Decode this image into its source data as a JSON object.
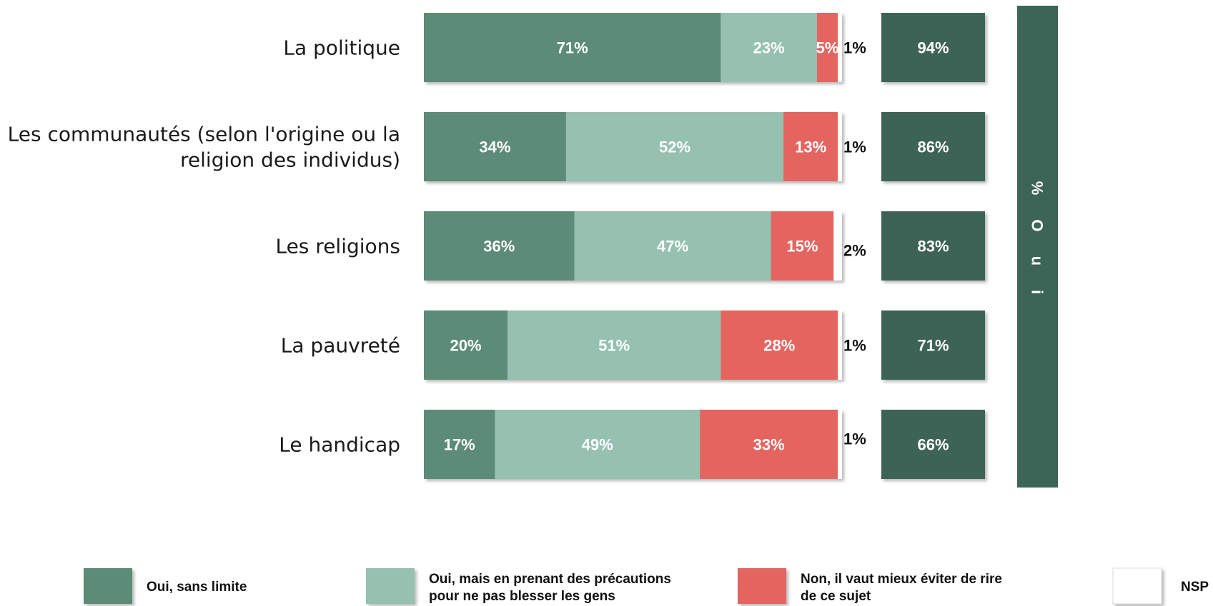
{
  "chart_data": {
    "type": "bar",
    "orientation": "horizontal",
    "stacked": true,
    "categories": [
      [
        "La politique"
      ],
      [
        "Les communautés (selon l'origine ou la",
        "religion des individus)"
      ],
      [
        "Les religions"
      ],
      [
        "La pauvreté"
      ],
      [
        "Le handicap"
      ]
    ],
    "series": [
      {
        "name": "Oui, sans limite",
        "values": [
          71,
          34,
          36,
          20,
          17
        ],
        "color": "#5b8b78",
        "legend_lines": [
          "Oui, sans limite"
        ]
      },
      {
        "name": "Oui, mais en prenant des précautions pour ne pas blesser les gens",
        "values": [
          23,
          52,
          47,
          51,
          49
        ],
        "color": "#96c1b0",
        "legend_lines": [
          "Oui, mais en prenant des précautions",
          "pour ne pas blesser les gens"
        ]
      },
      {
        "name": "Non, il vaut mieux éviter de rire de ce sujet",
        "values": [
          5,
          13,
          15,
          28,
          33
        ],
        "color": "#e46560",
        "legend_lines": [
          "Non, il vaut mieux éviter de rire",
          "de ce sujet"
        ]
      },
      {
        "name": "NSP",
        "values": [
          1,
          1,
          2,
          1,
          1
        ],
        "color": "#ffffff",
        "legend_lines": [
          "NSP"
        ]
      }
    ],
    "value_suffix": "%",
    "totals": {
      "title": "% O u i",
      "values": [
        94,
        86,
        83,
        71,
        66
      ],
      "color": "#3c6457"
    },
    "xlim": [
      0,
      100
    ],
    "grid": false,
    "legend_position": "bottom"
  }
}
